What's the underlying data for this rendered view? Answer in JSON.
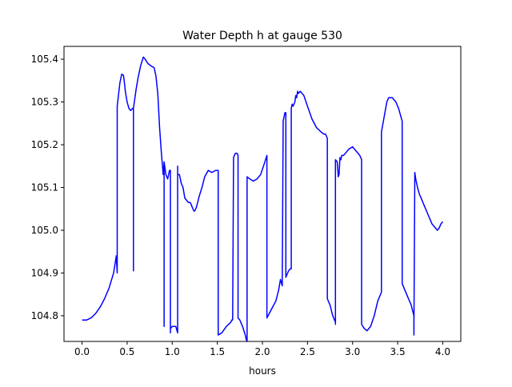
{
  "chart_data": {
    "type": "line",
    "title": "Water Depth h at gauge 530",
    "xlabel": "hours",
    "ylabel": "",
    "xlim": [
      -0.2,
      4.2
    ],
    "ylim": [
      104.74,
      105.43
    ],
    "xticks": [
      0.0,
      0.5,
      1.0,
      1.5,
      2.0,
      2.5,
      3.0,
      3.5,
      4.0
    ],
    "xtick_labels": [
      "0.0",
      "0.5",
      "1.0",
      "1.5",
      "2.0",
      "2.5",
      "3.0",
      "3.5",
      "4.0"
    ],
    "yticks": [
      104.8,
      104.9,
      105.0,
      105.1,
      105.2,
      105.3,
      105.4
    ],
    "ytick_labels": [
      "104.8",
      "104.9",
      "105.0",
      "105.1",
      "105.2",
      "105.3",
      "105.4"
    ],
    "grid": false,
    "series": [
      {
        "color": "#0000ff",
        "x": [
          0.0,
          0.05,
          0.1,
          0.15,
          0.2,
          0.25,
          0.3,
          0.35,
          0.38,
          0.39,
          0.39,
          0.42,
          0.44,
          0.46,
          0.47,
          0.48,
          0.5,
          0.52,
          0.54,
          0.56,
          0.57,
          0.57,
          0.57,
          0.6,
          0.62,
          0.65,
          0.68,
          0.7,
          0.73,
          0.76,
          0.8,
          0.82,
          0.84,
          0.86,
          0.88,
          0.9,
          0.91,
          0.91,
          0.91,
          0.93,
          0.95,
          0.97,
          0.98,
          0.98,
          0.98,
          1.0,
          1.02,
          1.04,
          1.06,
          1.06,
          1.06,
          1.08,
          1.1,
          1.12,
          1.14,
          1.16,
          1.18,
          1.2,
          1.22,
          1.24,
          1.25,
          1.27,
          1.3,
          1.33,
          1.36,
          1.4,
          1.44,
          1.48,
          1.51,
          1.51,
          1.55,
          1.6,
          1.65,
          1.66,
          1.67,
          1.68,
          1.7,
          1.72,
          1.73,
          1.73,
          1.75,
          1.78,
          1.81,
          1.82,
          1.83,
          1.83,
          1.86,
          1.9,
          1.94,
          1.98,
          2.02,
          2.05,
          2.05,
          2.05,
          2.1,
          2.15,
          2.18,
          2.2,
          2.22,
          2.23,
          2.23,
          2.25,
          2.26,
          2.26,
          2.27,
          2.29,
          2.31,
          2.32,
          2.32,
          2.33,
          2.34,
          2.36,
          2.37,
          2.38,
          2.39,
          2.4,
          2.42,
          2.44,
          2.46,
          2.5,
          2.55,
          2.6,
          2.65,
          2.68,
          2.7,
          2.72,
          2.72,
          2.75,
          2.78,
          2.81,
          2.81,
          2.81,
          2.83,
          2.84,
          2.84,
          2.85,
          2.86,
          2.87,
          2.88,
          2.89,
          2.9,
          2.92,
          2.94,
          2.96,
          3.0,
          3.04,
          3.08,
          3.1,
          3.1,
          3.13,
          3.16,
          3.2,
          3.24,
          3.28,
          3.32,
          3.32,
          3.35,
          3.38,
          3.4,
          3.42,
          3.44,
          3.48,
          3.51,
          3.53,
          3.55,
          3.55,
          3.6,
          3.65,
          3.68,
          3.68,
          3.69,
          3.7,
          3.72,
          3.74,
          3.76,
          3.78,
          3.8,
          3.82,
          3.84,
          3.86,
          3.88,
          3.9,
          3.92,
          3.94,
          3.96,
          3.98,
          4.0
        ],
        "y": [
          104.79,
          104.79,
          104.795,
          104.805,
          104.82,
          104.84,
          104.865,
          104.9,
          104.94,
          104.9,
          105.29,
          105.345,
          105.365,
          105.362,
          105.345,
          105.325,
          105.3,
          105.285,
          105.28,
          105.285,
          105.285,
          104.905,
          105.285,
          105.33,
          105.355,
          105.385,
          105.405,
          105.4,
          105.39,
          105.385,
          105.38,
          105.36,
          105.32,
          105.24,
          105.18,
          105.13,
          105.16,
          104.775,
          105.16,
          105.13,
          105.12,
          105.14,
          105.14,
          104.76,
          104.77,
          104.775,
          104.775,
          104.775,
          104.76,
          105.15,
          105.13,
          105.13,
          105.11,
          105.1,
          105.075,
          105.07,
          105.065,
          105.065,
          105.055,
          105.045,
          105.045,
          105.055,
          105.08,
          105.1,
          105.125,
          105.14,
          105.135,
          105.14,
          105.14,
          104.755,
          104.76,
          104.775,
          104.785,
          104.79,
          104.79,
          105.17,
          105.18,
          105.18,
          105.175,
          104.795,
          104.79,
          104.775,
          104.755,
          104.745,
          104.74,
          105.125,
          105.12,
          105.115,
          105.12,
          105.13,
          105.155,
          105.175,
          105.16,
          104.795,
          104.815,
          104.835,
          104.86,
          104.885,
          104.87,
          105.245,
          105.255,
          105.275,
          105.275,
          104.89,
          104.895,
          104.905,
          104.91,
          104.91,
          105.285,
          105.295,
          105.29,
          105.3,
          105.315,
          105.31,
          105.325,
          105.32,
          105.325,
          105.32,
          105.315,
          105.29,
          105.26,
          105.24,
          105.23,
          105.225,
          105.225,
          105.215,
          104.84,
          104.825,
          104.8,
          104.785,
          104.78,
          105.165,
          105.16,
          105.13,
          105.125,
          105.13,
          105.17,
          105.165,
          105.175,
          105.175,
          105.175,
          105.18,
          105.185,
          105.19,
          105.195,
          105.185,
          105.175,
          105.165,
          104.78,
          104.77,
          104.765,
          104.775,
          104.8,
          104.835,
          104.855,
          105.23,
          105.265,
          105.3,
          105.31,
          105.31,
          105.31,
          105.3,
          105.285,
          105.27,
          105.255,
          104.875,
          104.85,
          104.825,
          104.8,
          104.755,
          105.135,
          105.12,
          105.1,
          105.085,
          105.075,
          105.065,
          105.055,
          105.045,
          105.035,
          105.025,
          105.015,
          105.01,
          105.005,
          105.0,
          105.005,
          105.015,
          105.02
        ]
      }
    ]
  }
}
